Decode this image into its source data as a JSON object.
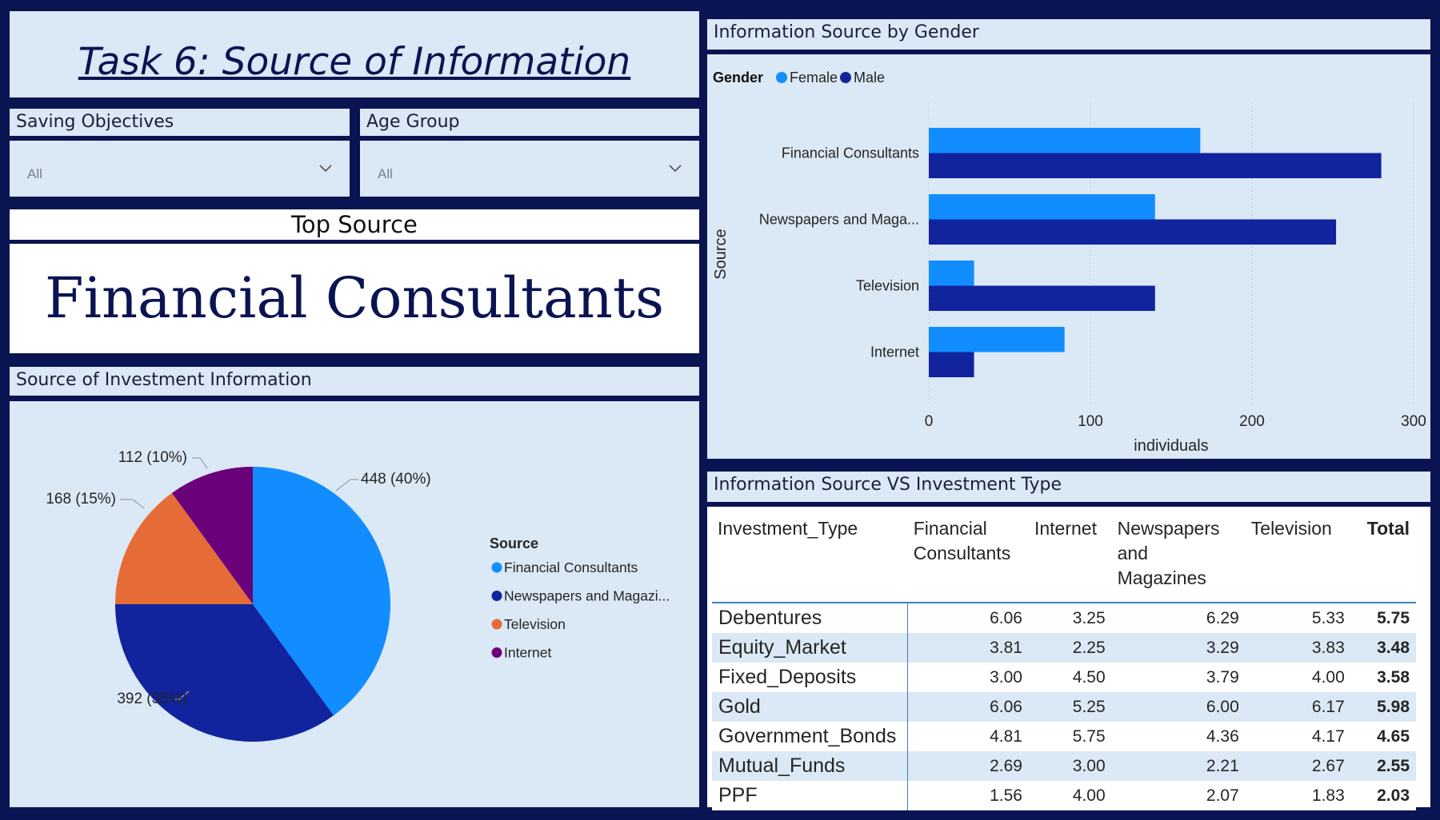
{
  "title": "Task 6: Source of Information",
  "slicers": [
    {
      "label": "Saving Objectives",
      "value": "All"
    },
    {
      "label": "Age Group",
      "value": "All"
    }
  ],
  "top_source": {
    "header": "Top Source",
    "value": "Financial Consultants"
  },
  "pie_panel_title": "Source of Investment Information",
  "bar_panel_title": "Information Source by Gender",
  "table_panel_title": "Information Source VS Investment Type",
  "colors": {
    "female": "#118dff",
    "male": "#12239e",
    "television": "#e66c37",
    "internet": "#6b007b"
  },
  "chart_data": [
    {
      "type": "pie",
      "legend_title": "Source",
      "legend_position": "right",
      "slices": [
        {
          "name": "Financial Consultants",
          "legend_label": "Financial Consultants",
          "value": 448,
          "label": "448 (40%)",
          "color": "#118dff"
        },
        {
          "name": "Newspapers and Magazines",
          "legend_label": "Newspapers and Magazi...",
          "value": 392,
          "label": "392 (35%)",
          "color": "#12239e"
        },
        {
          "name": "Television",
          "legend_label": "Television",
          "value": 168,
          "label": "168 (15%)",
          "color": "#e66c37"
        },
        {
          "name": "Internet",
          "legend_label": "Internet",
          "value": 112,
          "label": "112 (10%)",
          "color": "#6b007b"
        }
      ]
    },
    {
      "type": "bar",
      "orientation": "horizontal",
      "legend_title": "Gender",
      "legend_position": "top-left",
      "categories": [
        "Financial Consultants",
        "Newspapers and Maga...",
        "Television",
        "Internet"
      ],
      "series": [
        {
          "name": "Female",
          "values": [
            168,
            140,
            28,
            84
          ],
          "color": "#118dff"
        },
        {
          "name": "Male",
          "values": [
            280,
            252,
            140,
            28
          ],
          "color": "#12239e"
        }
      ],
      "xlabel": "individuals",
      "ylabel": "Source",
      "xlim": [
        0,
        300
      ],
      "xticks": [
        0,
        100,
        200,
        300
      ],
      "grid": true
    },
    {
      "type": "table",
      "columns": [
        "Investment_Type",
        "Financial Consultants",
        "Internet",
        "Newspapers and Magazines",
        "Television",
        "Total"
      ],
      "rows": [
        [
          "Debentures",
          "6.06",
          "3.25",
          "6.29",
          "5.33",
          "5.75"
        ],
        [
          "Equity_Market",
          "3.81",
          "2.25",
          "3.29",
          "3.83",
          "3.48"
        ],
        [
          "Fixed_Deposits",
          "3.00",
          "4.50",
          "3.79",
          "4.00",
          "3.58"
        ],
        [
          "Gold",
          "6.06",
          "5.25",
          "6.00",
          "6.17",
          "5.98"
        ],
        [
          "Government_Bonds",
          "4.81",
          "5.75",
          "4.36",
          "4.17",
          "4.65"
        ],
        [
          "Mutual_Funds",
          "2.69",
          "3.00",
          "2.21",
          "2.67",
          "2.55"
        ],
        [
          "PPF",
          "1.56",
          "4.00",
          "2.07",
          "1.83",
          "2.03"
        ]
      ]
    }
  ]
}
